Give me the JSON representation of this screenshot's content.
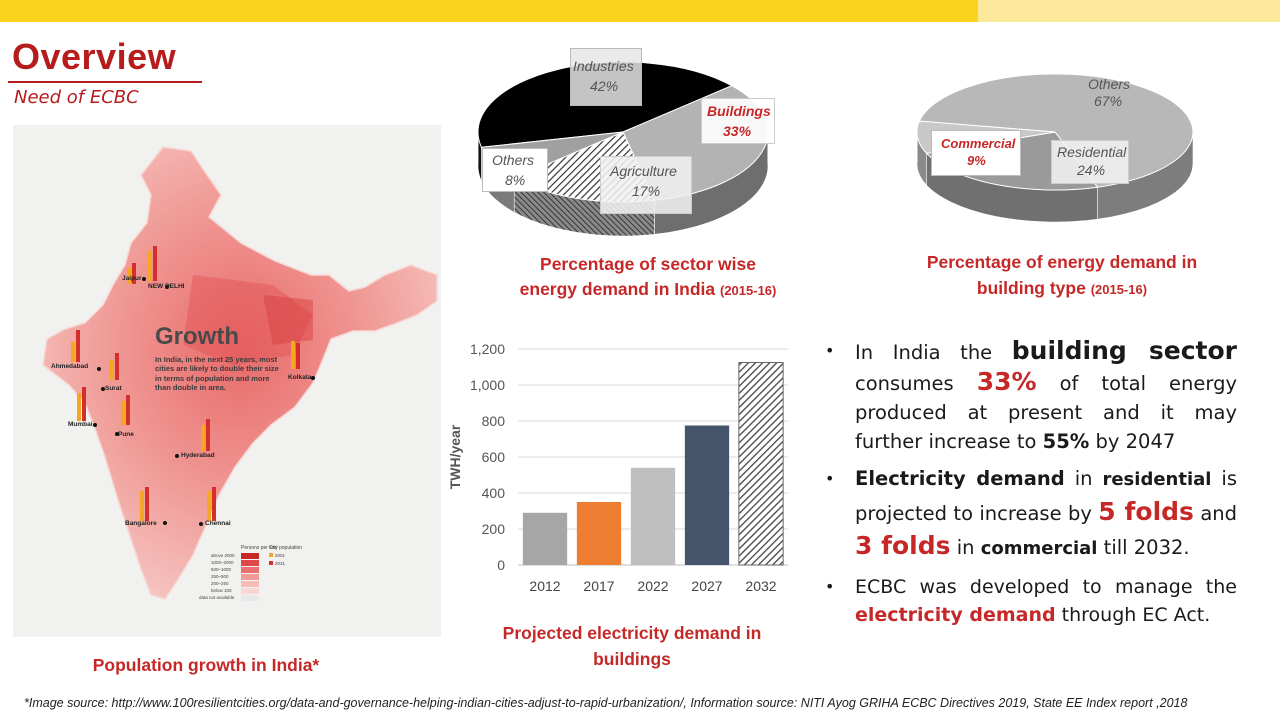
{
  "header": {
    "title": "Overview",
    "subtitle": "Need of ECBC"
  },
  "map": {
    "growth_title": "Growth",
    "growth_desc": "In India, in the next 25 years, most cities are likely to double their size in terms of population and more than double in area.",
    "cities": [
      "NEW DELHI",
      "Jaipur",
      "Ahmedabad",
      "Surat",
      "Mumbai",
      "Pune",
      "Kolkata",
      "Hyderabad",
      "Bangalore",
      "Chennai"
    ],
    "legend_density_title": "Persons per km²",
    "legend_density": [
      "above 2000",
      "1000–2000",
      "500–1000",
      "250–500",
      "200–250",
      "below 100",
      "data not available"
    ],
    "legend_pop_title": "City population",
    "legend_pop": [
      "2001",
      "2031"
    ],
    "caption": "Population growth in India*"
  },
  "pie1": {
    "caption_line1": "Percentage of sector wise",
    "caption_line2": "energy demand in India",
    "caption_year": "(2015-16)",
    "slices": [
      {
        "name": "Industries",
        "value": 42,
        "label": "Industries",
        "pct": "42%"
      },
      {
        "name": "Buildings",
        "value": 33,
        "label": "Buildings",
        "pct": "33%"
      },
      {
        "name": "Agriculture",
        "value": 17,
        "label": "Agriculture",
        "pct": "17%"
      },
      {
        "name": "Others",
        "value": 8,
        "label": "Others",
        "pct": "8%"
      }
    ]
  },
  "pie2": {
    "caption_line1": "Percentage of energy demand in",
    "caption_line2": "building type",
    "caption_year": "(2015-16)",
    "slices": [
      {
        "name": "Others",
        "value": 67,
        "label": "Others",
        "pct": "67%"
      },
      {
        "name": "Residential",
        "value": 24,
        "label": "Residential",
        "pct": "24%"
      },
      {
        "name": "Commercial",
        "value": 9,
        "label": "Commercial",
        "pct": "9%"
      }
    ]
  },
  "chart_data": {
    "type": "bar",
    "title": "Projected electricity demand in buildings",
    "caption_line1": "Projected electricity demand in",
    "caption_line2": "buildings",
    "categories": [
      "2012",
      "2017",
      "2022",
      "2027",
      "2032"
    ],
    "values": [
      290,
      350,
      540,
      775,
      1125
    ],
    "ylabel": "TWH/year",
    "xlabel": "",
    "ylim": [
      0,
      1200
    ],
    "yticks": [
      0,
      200,
      400,
      600,
      800,
      1000,
      1200
    ],
    "ytick_labels": [
      "0",
      "200",
      "400",
      "600",
      "800",
      "1,000",
      "1,200"
    ],
    "grid": true,
    "colors": [
      "#a6a6a6",
      "#ed7d31",
      "#bfbfbf",
      "#44546a",
      "hatched"
    ]
  },
  "bullets": {
    "b1": {
      "t1": "In India the ",
      "t2": "building sector",
      "t3": " consumes ",
      "t4": "33%",
      "t5": " of total energy produced at present and it may further increase to ",
      "t6": "55%",
      "t7": " by 2047"
    },
    "b2": {
      "t1": "Electricity demand",
      "t2": " in ",
      "t3": "residential",
      "t4": " is projected to increase by ",
      "t5": "5 folds",
      "t6": " and ",
      "t7": "3 folds",
      "t8": " in ",
      "t9": "commercial",
      "t10": " till 2032."
    },
    "b3": {
      "t1": "ECBC was developed to manage the ",
      "t2": "electricity demand",
      "t3": " through EC Act."
    }
  },
  "footer": "*Image source: http://www.100resilientcities.org/data-and-governance-helping-indian-cities-adjust-to-rapid-urbanization/, Information source: NITI Ayog GRIHA ECBC Directives 2019, State EE Index report ,2018",
  "colors": {
    "accent": "#c62828",
    "bar_yellow": "#f8d21c",
    "bar_yellow_light": "#fbe89a"
  }
}
